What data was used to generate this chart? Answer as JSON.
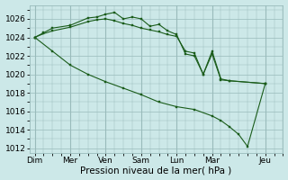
{
  "title": "",
  "xlabel": "Pression niveau de la mer( hPa )",
  "ylabel": "",
  "background_color": "#cce8e8",
  "grid_color": "#99bbbb",
  "line_color": "#1a5c1a",
  "ylim": [
    1011.5,
    1027.5
  ],
  "yticks": [
    1012,
    1014,
    1016,
    1018,
    1020,
    1022,
    1024,
    1026
  ],
  "day_labels": [
    "Dim",
    "Mer",
    "Ven",
    "Sam",
    "Lun",
    "Mar",
    "Jeu"
  ],
  "day_positions": [
    0,
    2,
    4,
    6,
    8,
    10,
    13
  ],
  "xlim": [
    -0.3,
    14.0
  ],
  "line1_x": [
    0,
    0.5,
    1,
    2,
    3,
    3.5,
    4,
    4.5,
    5,
    5.5,
    6,
    6.5,
    7,
    7.5,
    8,
    8.5,
    9,
    9.5,
    10,
    10.5,
    11,
    13
  ],
  "line1_y": [
    1024.0,
    1024.5,
    1025.0,
    1025.3,
    1026.1,
    1026.2,
    1026.5,
    1026.7,
    1026.0,
    1026.2,
    1026.0,
    1025.2,
    1025.4,
    1024.7,
    1024.3,
    1022.2,
    1022.0,
    1020.0,
    1022.2,
    1019.4,
    1019.3,
    1019.0
  ],
  "line2_x": [
    0,
    0.5,
    1,
    2,
    3,
    3.5,
    4,
    4.5,
    5,
    5.5,
    6,
    6.5,
    7,
    7.5,
    8,
    8.5,
    9,
    9.5,
    10,
    10.5,
    11,
    13
  ],
  "line2_y": [
    1024.0,
    1024.4,
    1024.7,
    1025.1,
    1025.7,
    1025.9,
    1026.0,
    1025.8,
    1025.5,
    1025.3,
    1025.0,
    1024.8,
    1024.6,
    1024.3,
    1024.1,
    1022.5,
    1022.3,
    1020.0,
    1022.5,
    1019.5,
    1019.3,
    1019.0
  ],
  "line3_x": [
    0,
    1,
    2,
    3,
    4,
    5,
    6,
    7,
    8,
    9,
    10,
    10.5,
    11,
    11.5,
    12,
    13
  ],
  "line3_y": [
    1024.0,
    1022.5,
    1021.0,
    1020.0,
    1019.2,
    1018.5,
    1017.8,
    1017.0,
    1016.5,
    1016.2,
    1015.5,
    1015.0,
    1014.3,
    1013.5,
    1012.2,
    1019.0
  ],
  "fontsize_xlabel": 7.5,
  "fontsize_tick": 6.5
}
